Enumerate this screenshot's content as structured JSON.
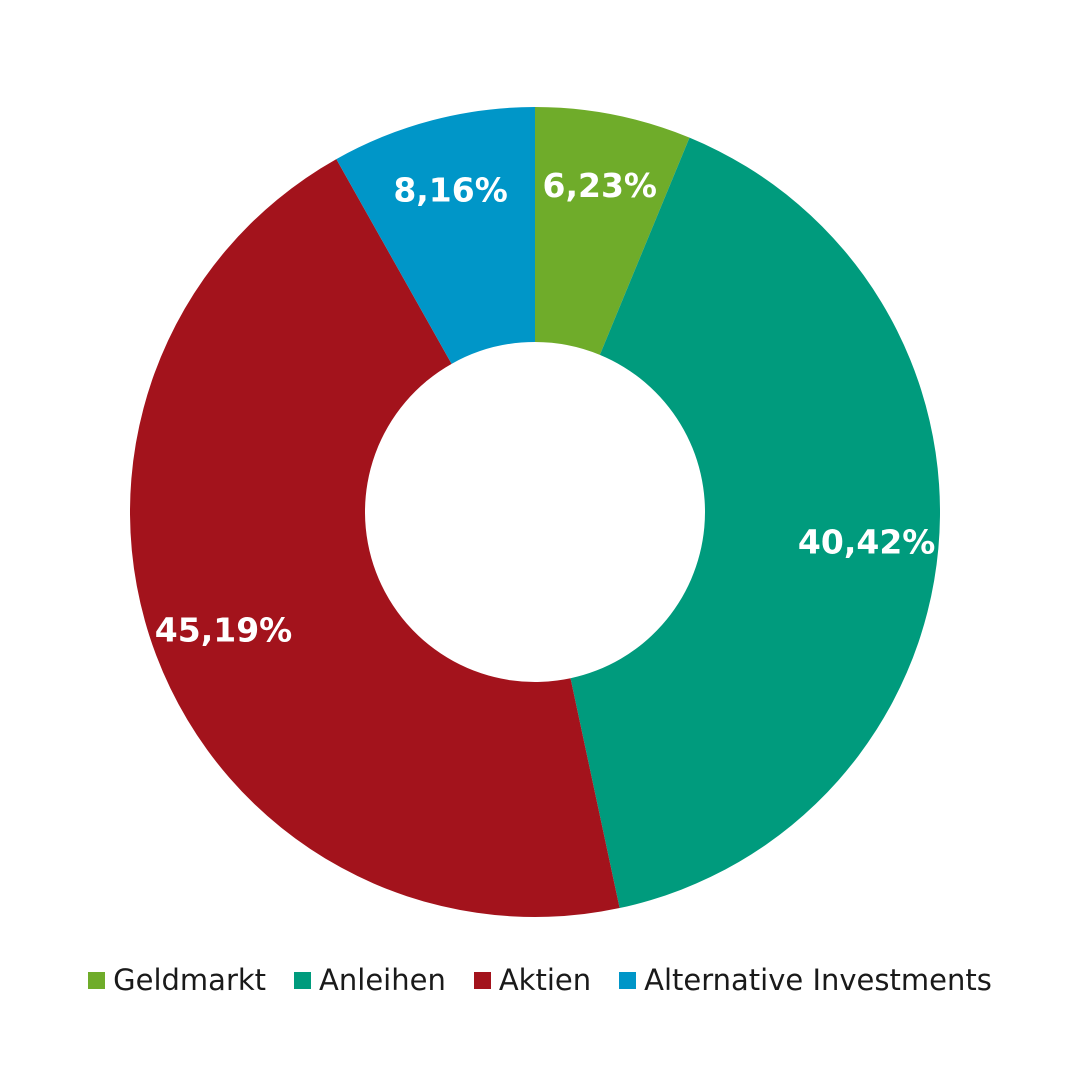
{
  "chart_data": {
    "type": "pie",
    "variant": "donut",
    "slices": [
      {
        "name": "Geldmarkt",
        "value": 6.23,
        "label": "6,23%",
        "color": "#6FAC2A"
      },
      {
        "name": "Anleihen",
        "value": 40.42,
        "label": "40,42%",
        "color": "#009B7D"
      },
      {
        "name": "Aktien",
        "value": 45.19,
        "label": "45,19%",
        "color": "#A3131C"
      },
      {
        "name": "Alternative Investments",
        "value": 8.16,
        "label": "8,16%",
        "color": "#0096C8"
      }
    ],
    "start": "12 o'clock",
    "direction": "clockwise",
    "legend_position": "bottom"
  }
}
